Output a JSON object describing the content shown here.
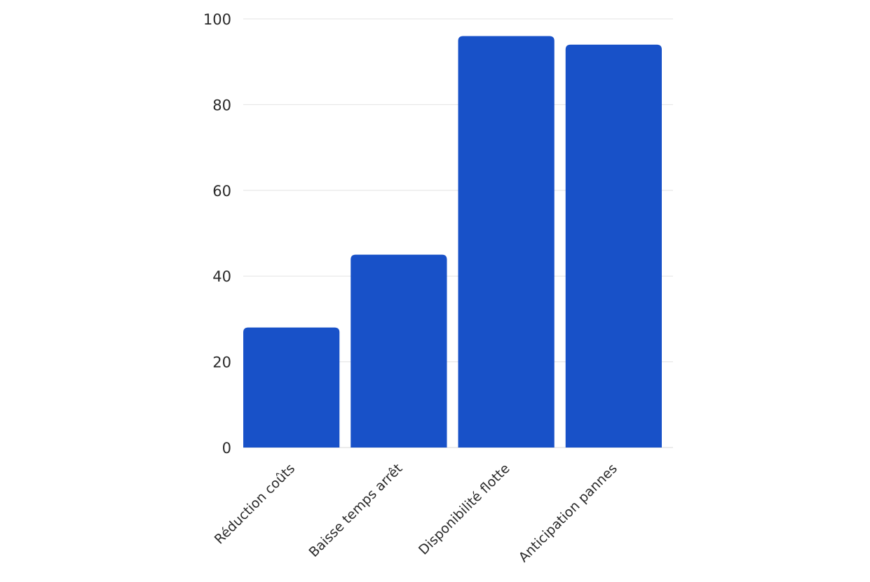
{
  "chart_data": {
    "type": "bar",
    "categories": [
      "Réduction coûts",
      "Baisse temps arrêt",
      "Disponibilité flotte",
      "Anticipation pannes"
    ],
    "values": [
      28,
      45,
      96,
      94
    ],
    "ylim": [
      0,
      100
    ],
    "yticks": [
      0,
      20,
      40,
      60,
      80,
      100
    ],
    "grid": true,
    "legend": "none",
    "colors": {
      "bar": "#1851c8"
    }
  }
}
